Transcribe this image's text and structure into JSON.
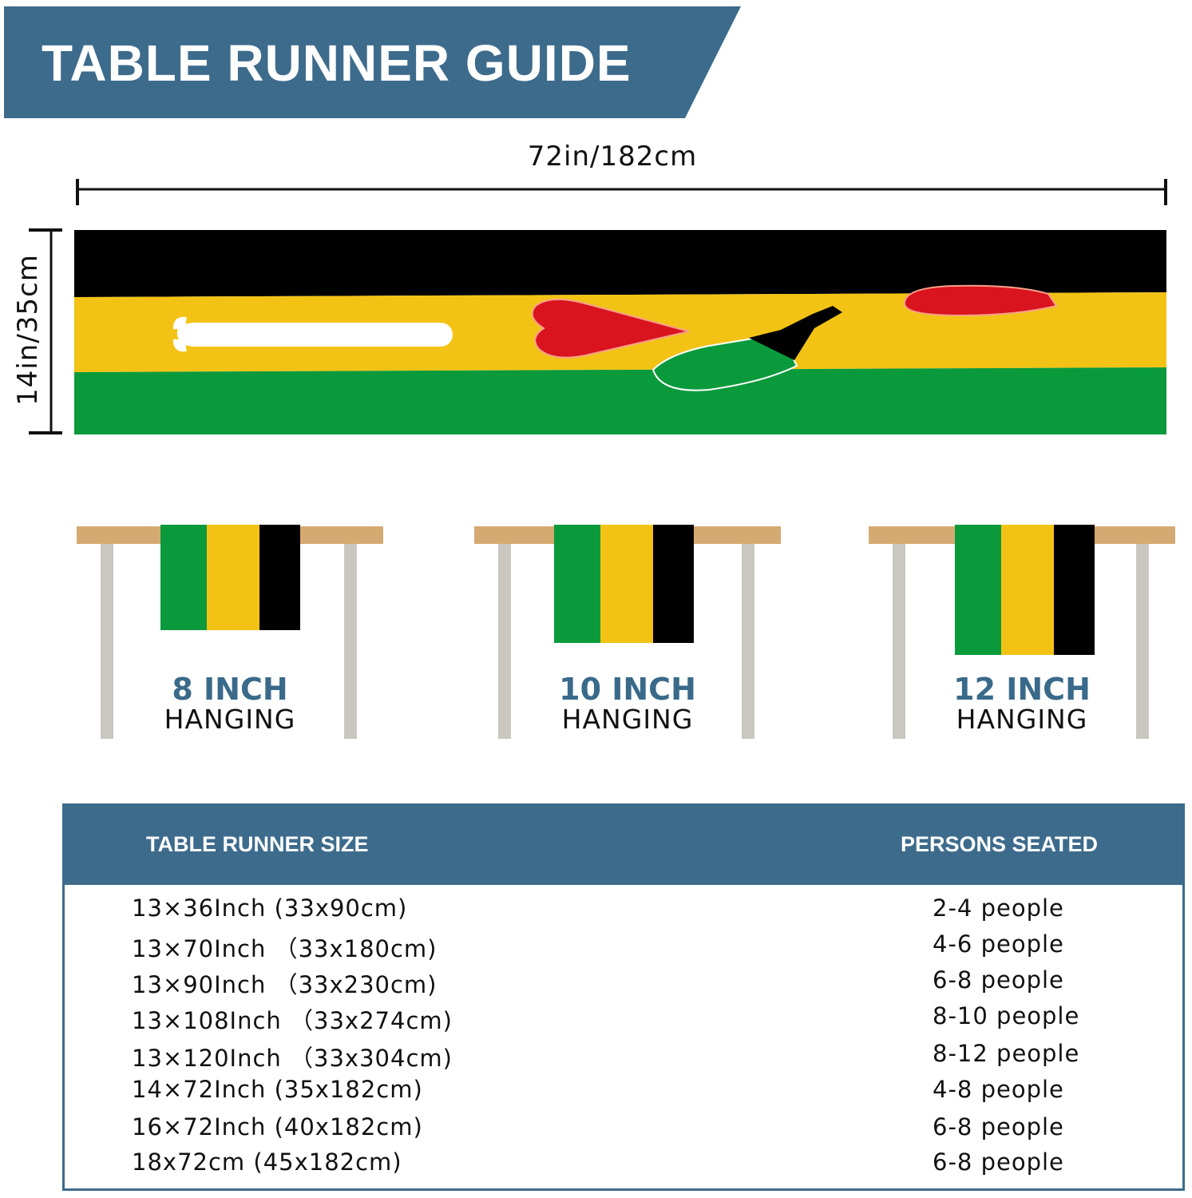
{
  "header": {
    "title": "TABLE RUNNER GUIDE",
    "color": "#3d6b8c"
  },
  "dimensions": {
    "width": "72in/182cm",
    "height": "14in/35cm"
  },
  "runner": {
    "colors": {
      "black": "#000000",
      "yellow": "#f2c315",
      "green": "#0a9a3c",
      "red": "#d9141f"
    }
  },
  "hanging": [
    {
      "size": "8 INCH",
      "label": "HANGING"
    },
    {
      "size": "10 INCH",
      "label": "HANGING"
    },
    {
      "size": "12 INCH",
      "label": "HANGING"
    }
  ],
  "size_table": {
    "headers": [
      "TABLE RUNNER SIZE",
      "PERSONS SEATED"
    ],
    "rows": [
      {
        "size": "13×36Inch (33x90cm)",
        "persons": "2-4 people"
      },
      {
        "size": "13×70Inch （33x180cm)",
        "persons": "4-6 people"
      },
      {
        "size": "13×90Inch （33x230cm)",
        "persons": "6-8 people"
      },
      {
        "size": "13×108Inch （33x274cm)",
        "persons": "8-10 people"
      },
      {
        "size": "13×120Inch （33x304cm)",
        "persons": "8-12 people"
      },
      {
        "size": "14×72Inch (35x182cm)",
        "persons": "4-8 people"
      },
      {
        "size": "16×72Inch (40x182cm)",
        "persons": "6-8 people"
      },
      {
        "size": "18x72cm (45x182cm)",
        "persons": "6-8 people"
      }
    ]
  }
}
